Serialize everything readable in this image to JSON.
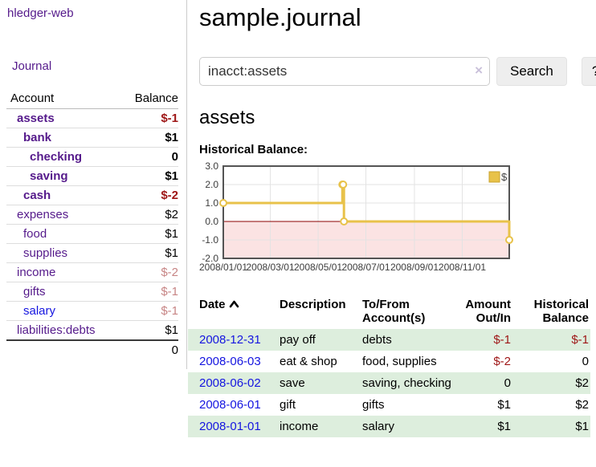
{
  "sidebar": {
    "app_title": "hledger-web",
    "nav": {
      "journal": "Journal"
    },
    "accounts": {
      "headers": {
        "account": "Account",
        "balance": "Balance"
      },
      "rows": [
        {
          "label": "assets",
          "balance": "$-1",
          "level": 1,
          "bold": true,
          "link": "purple",
          "balance_style": "negative"
        },
        {
          "label": "bank",
          "balance": "$1",
          "level": 2,
          "bold": true,
          "link": "purple",
          "balance_style": "normal"
        },
        {
          "label": "checking",
          "balance": "0",
          "level": 3,
          "bold": true,
          "link": "purple",
          "balance_style": "normal"
        },
        {
          "label": "saving",
          "balance": "$1",
          "level": 3,
          "bold": true,
          "link": "purple",
          "balance_style": "normal"
        },
        {
          "label": "cash",
          "balance": "$-2",
          "level": 2,
          "bold": true,
          "link": "purple",
          "balance_style": "negative"
        },
        {
          "label": "expenses",
          "balance": "$2",
          "level": 1,
          "bold": false,
          "link": "purple",
          "balance_style": "normal"
        },
        {
          "label": "food",
          "balance": "$1",
          "level": 2,
          "bold": false,
          "link": "purple",
          "balance_style": "normal"
        },
        {
          "label": "supplies",
          "balance": "$1",
          "level": 2,
          "bold": false,
          "link": "purple",
          "balance_style": "normal"
        },
        {
          "label": "income",
          "balance": "$-2",
          "level": 1,
          "bold": false,
          "link": "purple",
          "balance_style": "negative-muted"
        },
        {
          "label": "gifts",
          "balance": "$-1",
          "level": 2,
          "bold": false,
          "link": "purple",
          "balance_style": "negative-muted"
        },
        {
          "label": "salary",
          "balance": "$-1",
          "level": 2,
          "bold": false,
          "link": "blue",
          "balance_style": "negative-muted"
        },
        {
          "label": "liabilities:debts",
          "balance": "$1",
          "level": 1,
          "bold": false,
          "link": "purple",
          "balance_style": "normal"
        }
      ],
      "total": "0"
    }
  },
  "header": {
    "title": "sample.journal"
  },
  "search": {
    "value": "inacct:assets",
    "clear_icon": "×",
    "button": "Search",
    "help_button": "?"
  },
  "account_page": {
    "title": "assets",
    "chart_label": "Historical Balance:"
  },
  "chart_data": {
    "type": "line",
    "step": true,
    "title": "Historical Balance:",
    "x_range": [
      "2008-01-01",
      "2008-12-31"
    ],
    "x_tick_labels": [
      "2008/01/01",
      "2008/03/01",
      "2008/05/01",
      "2008/07/01",
      "2008/09/01",
      "2008/11/01"
    ],
    "y_ticks": [
      3.0,
      2.0,
      1.0,
      0.0,
      -1.0,
      -2.0
    ],
    "ylim": [
      -2.0,
      3.0
    ],
    "series": [
      {
        "name": "$",
        "color": "#e8c24a",
        "marker": "open-circle",
        "points": [
          {
            "x": "2008-01-01",
            "y": 1
          },
          {
            "x": "2008-06-01",
            "y": 2
          },
          {
            "x": "2008-06-02",
            "y": 2
          },
          {
            "x": "2008-06-03",
            "y": 0
          },
          {
            "x": "2008-12-31",
            "y": -1
          }
        ]
      }
    ],
    "legend": {
      "label": "$",
      "position": "top-right"
    },
    "styles": {
      "grid_color": "#e3e3e3",
      "frame_color": "#545454",
      "zero_line_color": "#8b0000",
      "negative_region_color": "#fbe3e3",
      "tick_text_color": "#3c3c3c",
      "legend_square_border": "#c9a32f"
    }
  },
  "register": {
    "headers": {
      "date": "Date",
      "description": "Description",
      "accounts": "To/From Account(s)",
      "amount": "Amount Out/In",
      "balance": "Historical Balance"
    },
    "rows": [
      {
        "date": "2008-12-31",
        "description": "pay off",
        "accounts": "debts",
        "amount": "$-1",
        "amount_style": "negative",
        "balance": "$-1",
        "balance_style": "negative"
      },
      {
        "date": "2008-06-03",
        "description": "eat & shop",
        "accounts": "food, supplies",
        "amount": "$-2",
        "amount_style": "negative",
        "balance": "0",
        "balance_style": "normal"
      },
      {
        "date": "2008-06-02",
        "description": "save",
        "accounts": "saving, checking",
        "amount": "0",
        "amount_style": "normal",
        "balance": "$2",
        "balance_style": "normal"
      },
      {
        "date": "2008-06-01",
        "description": "gift",
        "accounts": "gifts",
        "amount": "$1",
        "amount_style": "normal",
        "balance": "$2",
        "balance_style": "normal"
      },
      {
        "date": "2008-01-01",
        "description": "income",
        "accounts": "salary",
        "amount": "$1",
        "amount_style": "normal",
        "balance": "$1",
        "balance_style": "normal"
      }
    ]
  },
  "colors": {
    "link_purple": "#551a8b",
    "link_blue": "#1515e0",
    "negative": "#9e1616",
    "negative_muted": "#c78585",
    "row_green": "#ddeedd",
    "series_gold": "#e8c24a"
  }
}
